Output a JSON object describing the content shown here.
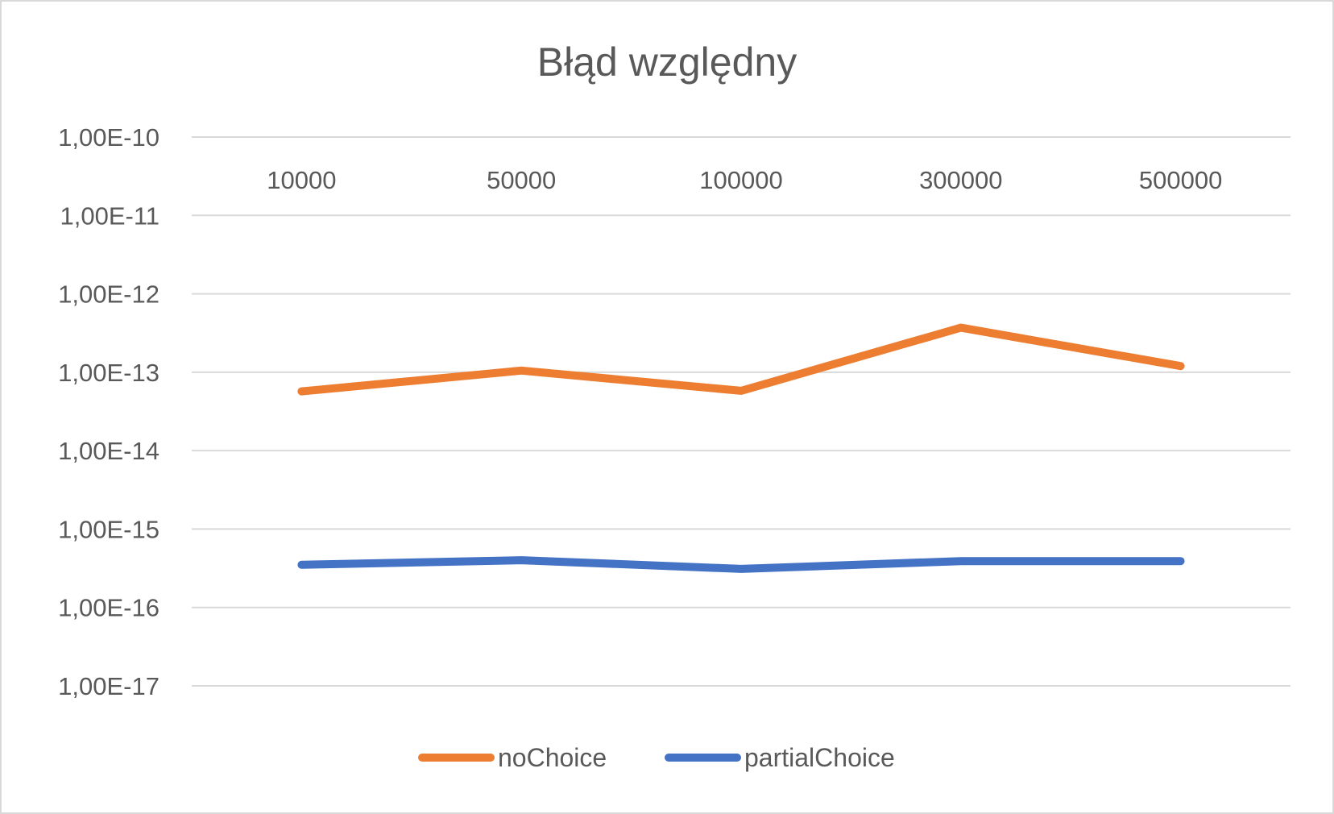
{
  "chart_data": {
    "type": "line",
    "title": "Błąd względny",
    "xlabel": "",
    "ylabel": "",
    "y_scale": "log",
    "ylim": [
      1e-17,
      1e-10
    ],
    "y_tick_labels": [
      "1,00E-10",
      "1,00E-11",
      "1,00E-12",
      "1,00E-13",
      "1,00E-14",
      "1,00E-15",
      "1,00E-16",
      "1,00E-17"
    ],
    "categories": [
      "10000",
      "50000",
      "100000",
      "300000",
      "500000"
    ],
    "x_axis_position": "top",
    "grid": true,
    "legend_position": "bottom",
    "series": [
      {
        "name": "noChoice",
        "color": "#ed7d31",
        "values": [
          5.7e-14,
          1.05e-13,
          5.8e-14,
          3.7e-13,
          1.2e-13
        ]
      },
      {
        "name": "partialChoice",
        "color": "#4472c4",
        "values": [
          3.5e-16,
          4e-16,
          3.1e-16,
          3.9e-16,
          3.9e-16
        ]
      }
    ]
  }
}
